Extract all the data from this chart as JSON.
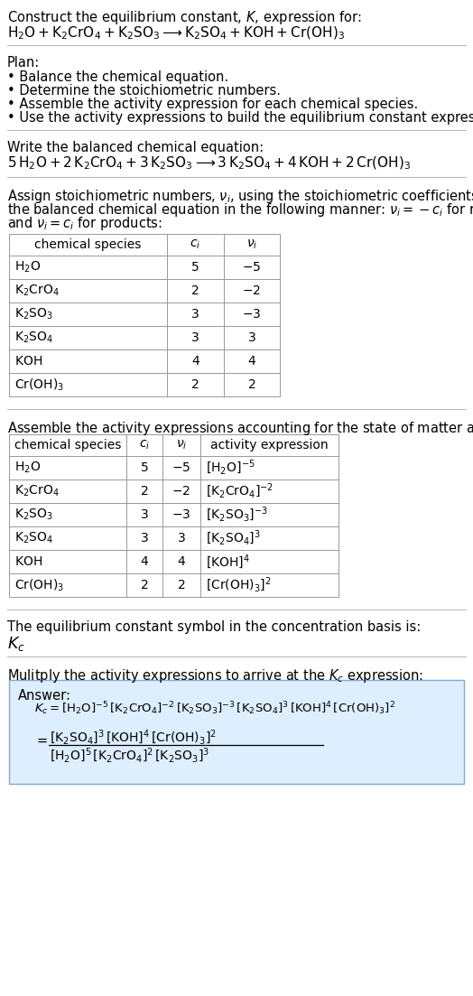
{
  "bg_color": "#ffffff",
  "text_color": "#000000",
  "title_line1": "Construct the equilibrium constant, $K$, expression for:",
  "title_line2": "$\\mathrm{H_2O + K_2CrO_4 + K_2SO_3 \\longrightarrow K_2SO_4 + KOH + Cr(OH)_3}$",
  "plan_header": "Plan:",
  "plan_bullets": [
    "• Balance the chemical equation.",
    "• Determine the stoichiometric numbers.",
    "• Assemble the activity expression for each chemical species.",
    "• Use the activity expressions to build the equilibrium constant expression."
  ],
  "balanced_eq_header": "Write the balanced chemical equation:",
  "balanced_eq": "$\\mathrm{5\\,H_2O + 2\\,K_2CrO_4 + 3\\,K_2SO_3 \\longrightarrow 3\\,K_2SO_4 + 4\\,KOH + 2\\,Cr(OH)_3}$",
  "stoich_intro_lines": [
    "Assign stoichiometric numbers, $\\nu_i$, using the stoichiometric coefficients, $c_i$, from",
    "the balanced chemical equation in the following manner: $\\nu_i = -c_i$ for reactants",
    "and $\\nu_i = c_i$ for products:"
  ],
  "table1_headers": [
    "chemical species",
    "$c_i$",
    "$\\nu_i$"
  ],
  "table1_rows": [
    [
      "$\\mathrm{H_2O}$",
      "5",
      "$-5$"
    ],
    [
      "$\\mathrm{K_2CrO_4}$",
      "2",
      "$-2$"
    ],
    [
      "$\\mathrm{K_2SO_3}$",
      "3",
      "$-3$"
    ],
    [
      "$\\mathrm{K_2SO_4}$",
      "3",
      "$3$"
    ],
    [
      "$\\mathrm{KOH}$",
      "4",
      "$4$"
    ],
    [
      "$\\mathrm{Cr(OH)_3}$",
      "2",
      "$2$"
    ]
  ],
  "activity_intro": "Assemble the activity expressions accounting for the state of matter and $\\nu_i$:",
  "table2_headers": [
    "chemical species",
    "$c_i$",
    "$\\nu_i$",
    "activity expression"
  ],
  "table2_rows": [
    [
      "$\\mathrm{H_2O}$",
      "5",
      "$-5$",
      "$[\\mathrm{H_2O}]^{-5}$"
    ],
    [
      "$\\mathrm{K_2CrO_4}$",
      "2",
      "$-2$",
      "$[\\mathrm{K_2CrO_4}]^{-2}$"
    ],
    [
      "$\\mathrm{K_2SO_3}$",
      "3",
      "$-3$",
      "$[\\mathrm{K_2SO_3}]^{-3}$"
    ],
    [
      "$\\mathrm{K_2SO_4}$",
      "3",
      "$3$",
      "$[\\mathrm{K_2SO_4}]^{3}$"
    ],
    [
      "$\\mathrm{KOH}$",
      "4",
      "$4$",
      "$[\\mathrm{KOH}]^{4}$"
    ],
    [
      "$\\mathrm{Cr(OH)_3}$",
      "2",
      "$2$",
      "$[\\mathrm{Cr(OH)_3}]^{2}$"
    ]
  ],
  "kc_symbol_intro": "The equilibrium constant symbol in the concentration basis is:",
  "kc_symbol": "$K_c$",
  "multiply_intro": "Mulitply the activity expressions to arrive at the $K_c$ expression:",
  "answer_label": "Answer:",
  "answer_box_color": "#ddeeff",
  "answer_box_border": "#88aacc",
  "answer_line1": "$K_c = [\\mathrm{H_2O}]^{-5}\\,[\\mathrm{K_2CrO_4}]^{-2}\\,[\\mathrm{K_2SO_3}]^{-3}\\,[\\mathrm{K_2SO_4}]^{3}\\,[\\mathrm{KOH}]^{4}\\,[\\mathrm{Cr(OH)_3}]^{2}$",
  "answer_num": "$[\\mathrm{K_2SO_4}]^3\\,[\\mathrm{KOH}]^4\\,[\\mathrm{Cr(OH)_3}]^2$",
  "answer_den": "$[\\mathrm{H_2O}]^5\\,[\\mathrm{K_2CrO_4}]^2\\,[\\mathrm{K_2SO_3}]^3$"
}
